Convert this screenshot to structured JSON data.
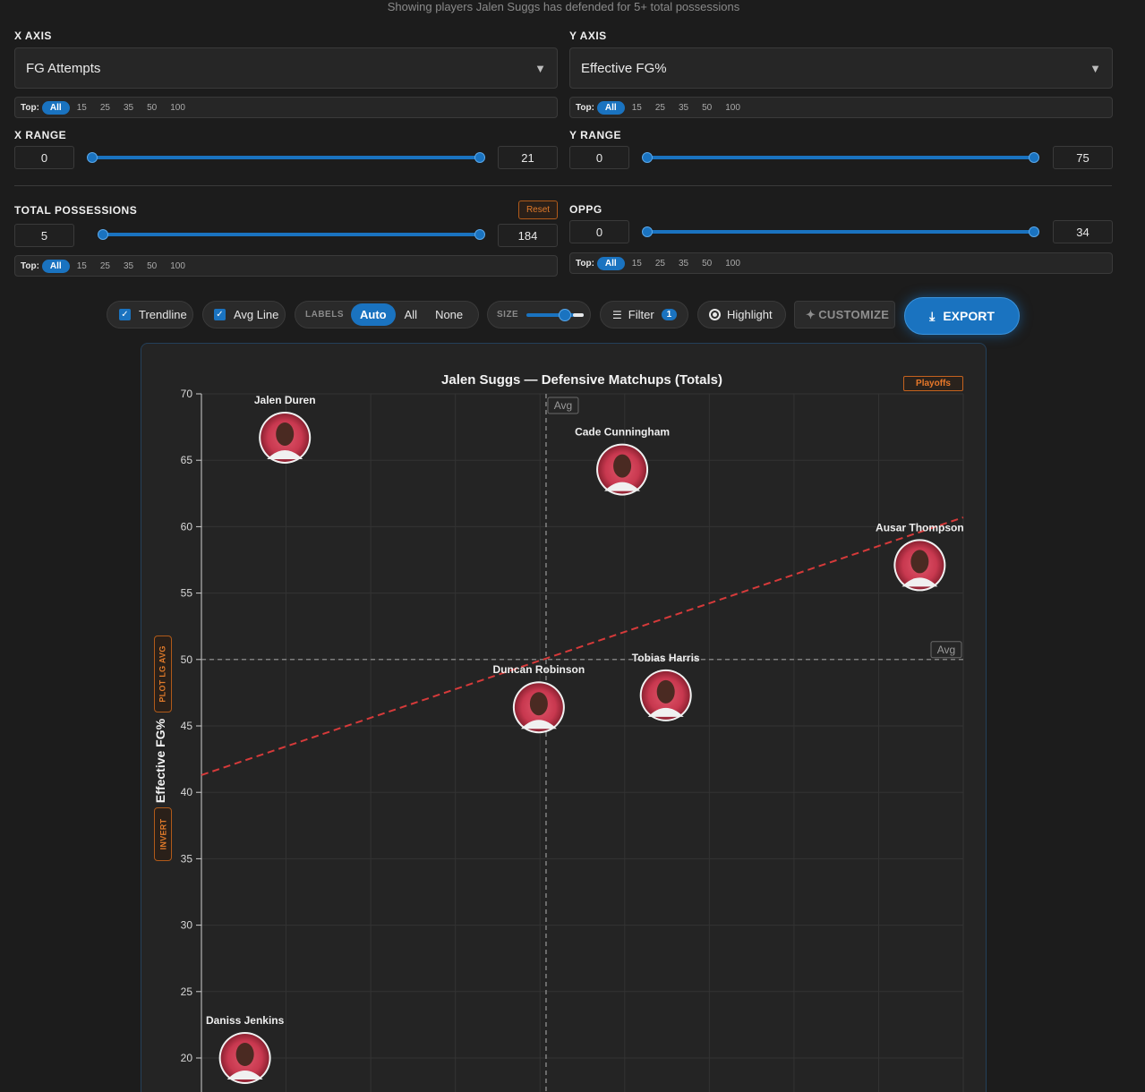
{
  "subtitle": "Showing players Jalen Suggs has defended for 5+ total possessions",
  "x_axis": {
    "label": "X AXIS",
    "value": "FG Attempts",
    "top_label": "Top:",
    "top_options": [
      "All",
      "15",
      "25",
      "35",
      "50",
      "100"
    ],
    "top_selected": "All"
  },
  "y_axis": {
    "label": "Y AXIS",
    "value": "Effective FG%",
    "top_label": "Top:",
    "top_options": [
      "All",
      "15",
      "25",
      "35",
      "50",
      "100"
    ],
    "top_selected": "All"
  },
  "x_range": {
    "label": "X RANGE",
    "min": "0",
    "max": "21"
  },
  "y_range": {
    "label": "Y RANGE",
    "min": "0",
    "max": "75"
  },
  "total_possessions": {
    "label": "TOTAL POSSESSIONS",
    "reset": "Reset",
    "min": "5",
    "max": "184",
    "top_label": "Top:",
    "top_options": [
      "All",
      "15",
      "25",
      "35",
      "50",
      "100"
    ],
    "top_selected": "All"
  },
  "oppg": {
    "label": "OPPG",
    "min": "0",
    "max": "34",
    "top_label": "Top:",
    "top_options": [
      "All",
      "15",
      "25",
      "35",
      "50",
      "100"
    ],
    "top_selected": "All"
  },
  "toolbar": {
    "trendline": "Trendline",
    "avg_line": "Avg Line",
    "labels_label": "LABELS",
    "labels_options": [
      "Auto",
      "All",
      "None"
    ],
    "labels_selected": "Auto",
    "size_label": "SIZE",
    "filter": "Filter",
    "filter_count": "1",
    "highlight": "Highlight",
    "customize": "CUSTOMIZE",
    "export": "EXPORT"
  },
  "chart_badges": {
    "playoffs": "Playoffs",
    "plot_lg_avg": "PLOT LG AVG",
    "invert": "INVERT"
  },
  "chart_data": {
    "type": "scatter",
    "title": "Jalen Suggs — Defensive Matchups (Totals)",
    "ylabel": "Effective FG%",
    "xlabel": "",
    "xlim": [
      0,
      21
    ],
    "ylim": [
      0,
      70
    ],
    "yticks": [
      20,
      25,
      30,
      35,
      40,
      45,
      50,
      55,
      60,
      65,
      70
    ],
    "grid": true,
    "points": [
      {
        "name": "Jalen Duren",
        "x": 2.3,
        "y": 66.7
      },
      {
        "name": "Cade Cunningham",
        "x": 11.6,
        "y": 64.3
      },
      {
        "name": "Ausar Thompson",
        "x": 19.8,
        "y": 57.1
      },
      {
        "name": "Duncan Robinson",
        "x": 9.3,
        "y": 46.4
      },
      {
        "name": "Tobias Harris",
        "x": 12.8,
        "y": 47.3
      },
      {
        "name": "Daniss Jenkins",
        "x": 1.2,
        "y": 20.0
      }
    ],
    "avg_x": 9.5,
    "avg_y": 50.0,
    "avg_label": "Avg",
    "trendline": {
      "start": [
        0,
        41.3
      ],
      "end": [
        21,
        60.7
      ]
    }
  }
}
